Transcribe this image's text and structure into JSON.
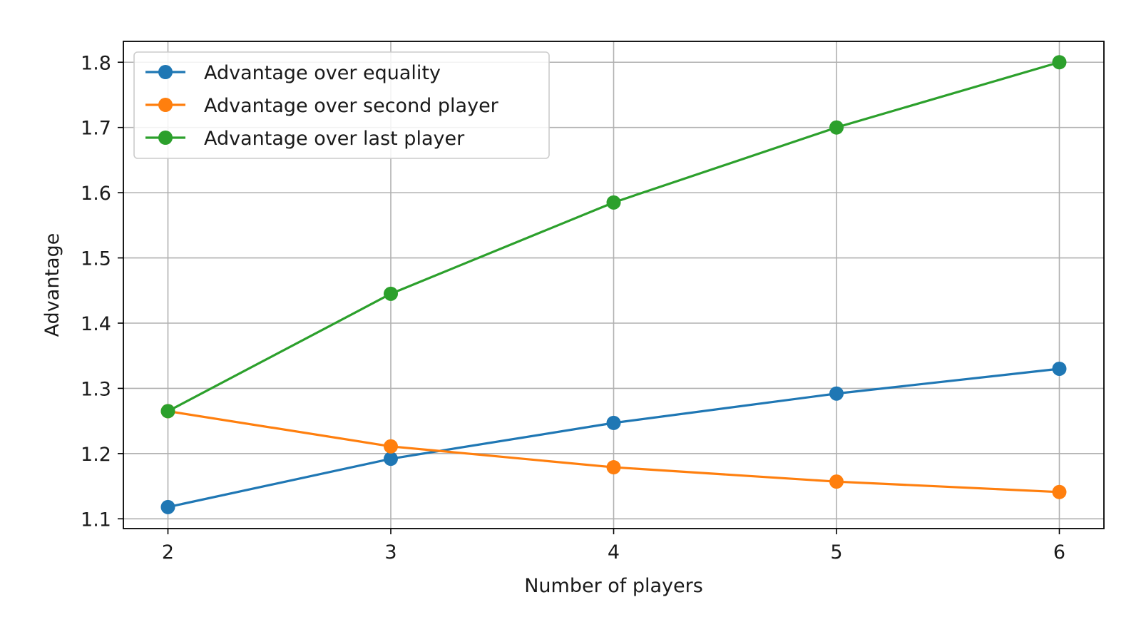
{
  "chart_data": {
    "type": "line",
    "title": "",
    "xlabel": "Number of players",
    "ylabel": "Advantage",
    "x": [
      2,
      3,
      4,
      5,
      6
    ],
    "xticks": [
      "2",
      "3",
      "4",
      "5",
      "6"
    ],
    "yticks": [
      "1.1",
      "1.2",
      "1.3",
      "1.4",
      "1.5",
      "1.6",
      "1.7",
      "1.8"
    ],
    "xlim": [
      1.8,
      6.2
    ],
    "ylim": [
      1.085,
      1.832
    ],
    "grid": true,
    "legend_position": "upper-left",
    "series": [
      {
        "name": "Advantage over equality",
        "color": "#1f77b4",
        "values": [
          1.118,
          1.192,
          1.247,
          1.292,
          1.33
        ]
      },
      {
        "name": "Advantage over second player",
        "color": "#ff7f0e",
        "values": [
          1.265,
          1.211,
          1.179,
          1.157,
          1.141
        ]
      },
      {
        "name": "Advantage over last player",
        "color": "#2ca02c",
        "values": [
          1.265,
          1.445,
          1.585,
          1.7,
          1.8
        ]
      }
    ]
  }
}
